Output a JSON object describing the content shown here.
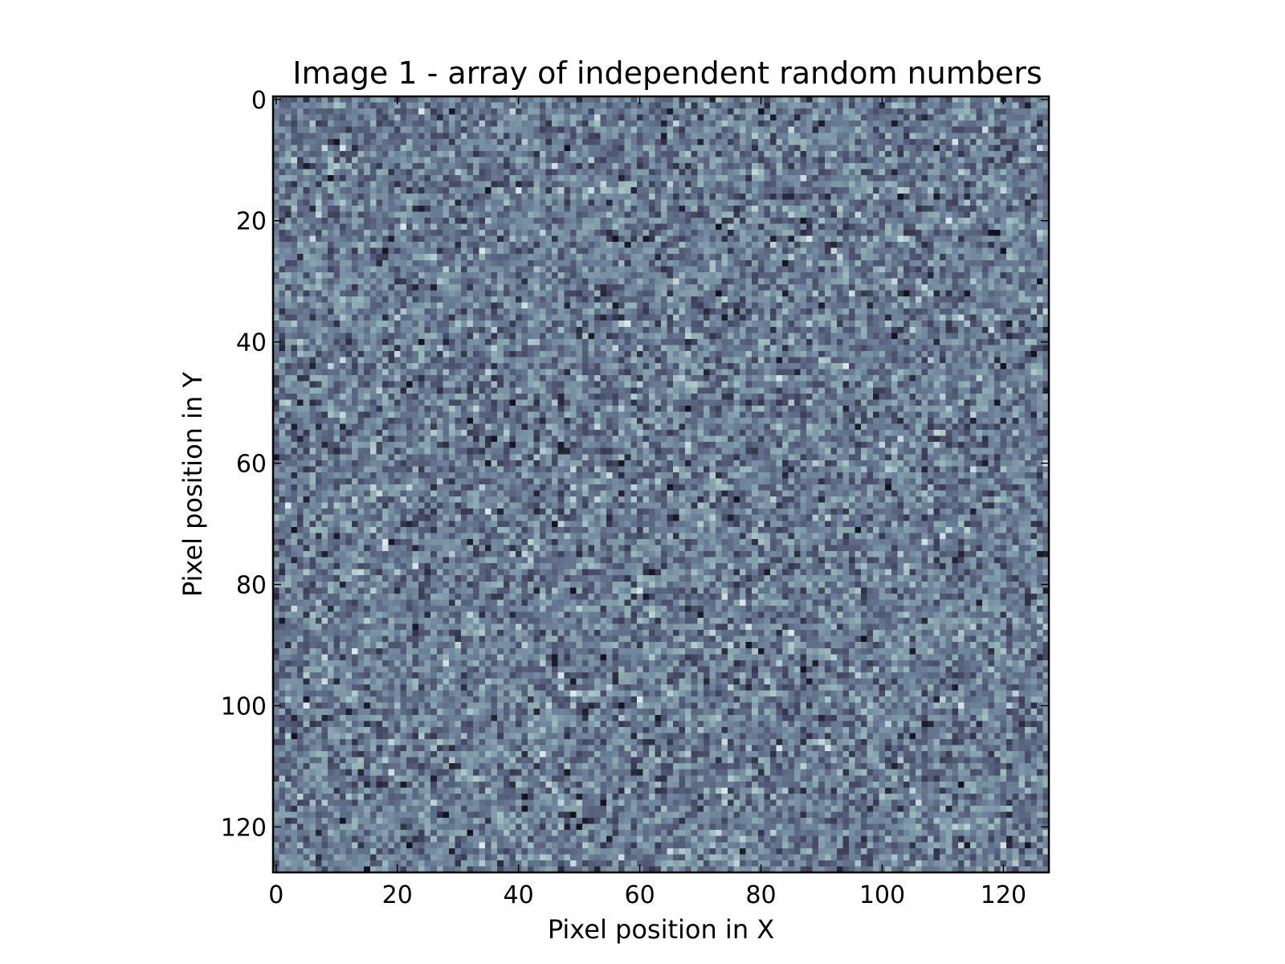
{
  "chart_data": {
    "type": "heatmap",
    "title": "Image 1 - array of independent random numbers",
    "xlabel": "Pixel position in X",
    "ylabel": "Pixel position in Y",
    "grid_size": [
      128,
      128
    ],
    "xlim": [
      -0.5,
      127.5
    ],
    "ylim": [
      127.5,
      -0.5
    ],
    "xticks": [
      0,
      20,
      40,
      60,
      80,
      100,
      120
    ],
    "yticks": [
      0,
      20,
      40,
      60,
      80,
      100,
      120
    ],
    "xtick_labels": [
      "0",
      "20",
      "40",
      "60",
      "80",
      "100",
      "120"
    ],
    "ytick_labels": [
      "0",
      "20",
      "40",
      "60",
      "80",
      "100",
      "120"
    ],
    "y_axis_inverted": true,
    "grid": false,
    "legend": "none",
    "colormap": "bone",
    "colormap_stops": [
      "#14141e",
      "#4a4e6a",
      "#6e839b",
      "#94b4b6",
      "#dce8e8"
    ],
    "value_distribution": "independent random numbers"
  }
}
